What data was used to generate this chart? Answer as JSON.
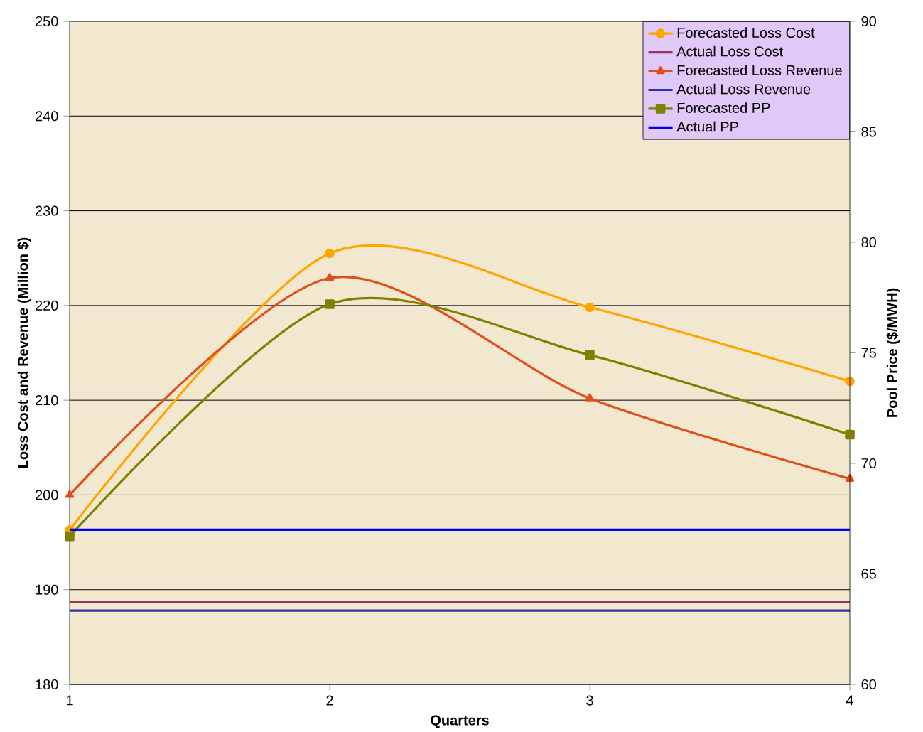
{
  "chart_data": {
    "type": "line",
    "xlabel": "Quarters",
    "ylabel": "Loss Cost and Revenue (Million $)",
    "y2label": "Pool Price ($/MWH)",
    "x": [
      1,
      2,
      3,
      4
    ],
    "xlim": [
      1,
      4
    ],
    "xticks": [
      1,
      2,
      3,
      4
    ],
    "ylim": [
      180,
      250
    ],
    "yticks": [
      180,
      190,
      200,
      210,
      220,
      230,
      240,
      250
    ],
    "y2lim": [
      60,
      90
    ],
    "y2ticks": [
      60,
      65,
      70,
      75,
      80,
      85,
      90
    ],
    "grid": "y",
    "legend": "top right",
    "series": [
      {
        "name": "Forecasted Loss Cost",
        "color": "#ffa500",
        "marker": "circle",
        "values": [
          196.3,
          225.5,
          219.8,
          212.0
        ]
      },
      {
        "name": "Actual Loss Cost",
        "color": "#993366",
        "marker": "none",
        "values": [
          188.7,
          188.7,
          188.7,
          188.7
        ]
      },
      {
        "name": "Forecasted Loss Revenue",
        "color": "#e04e1b",
        "marker": "triangle",
        "values": [
          200.0,
          222.9,
          210.2,
          201.7
        ]
      },
      {
        "name": "Actual Loss Revenue",
        "color": "#333399",
        "marker": "none",
        "values": [
          187.8,
          187.8,
          187.8,
          187.8
        ]
      },
      {
        "name": "Forecasted PP",
        "color": "#808000",
        "marker": "square",
        "axis": "y2",
        "values": [
          66.7,
          77.2,
          74.9,
          71.3
        ]
      },
      {
        "name": "Actual PP",
        "color": "#0000ff",
        "marker": "none",
        "axis": "y2",
        "values": [
          67.0,
          67.0,
          67.0,
          67.0
        ]
      }
    ]
  }
}
